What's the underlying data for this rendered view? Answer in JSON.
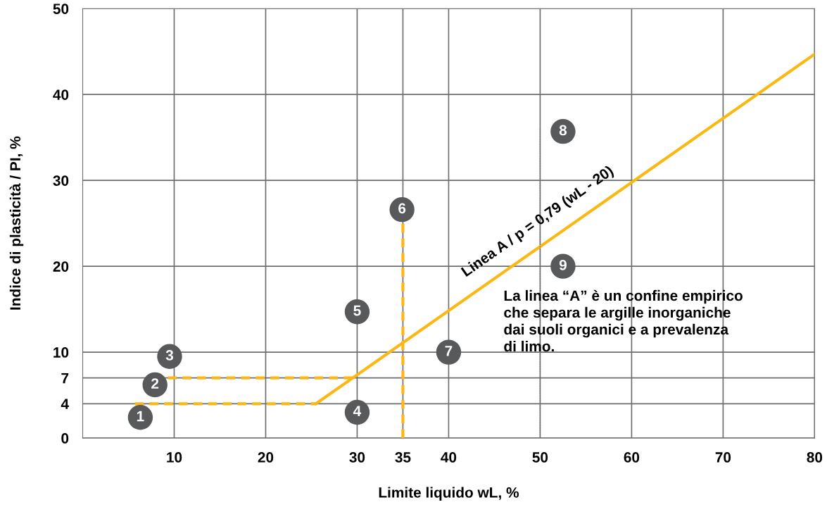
{
  "chart_data": {
    "type": "line",
    "xlabel": "Limite liquido wL, %",
    "ylabel": "Indice di plasticità / PI, %",
    "xlim": [
      0,
      80
    ],
    "ylim": [
      0,
      50
    ],
    "xticks": [
      10,
      20,
      30,
      35,
      40,
      50,
      60,
      70,
      80
    ],
    "yticks": [
      0,
      4,
      7,
      10,
      20,
      30,
      40,
      50
    ],
    "grid": true,
    "series": [
      {
        "x": [
          25.5,
          80
        ],
        "values": [
          4,
          44.7
        ],
        "color": "#fbb714",
        "line_style": "solid",
        "marker": "none"
      },
      {
        "x": [
          5.7,
          25.5
        ],
        "values": [
          4,
          4
        ],
        "color": "#fbb714",
        "line_style": "dashed",
        "marker": "none"
      },
      {
        "x": [
          9.3,
          30
        ],
        "values": [
          7,
          7
        ],
        "color": "#fbb714",
        "line_style": "dashed",
        "marker": "none"
      },
      {
        "x": [
          35,
          35
        ],
        "values": [
          0,
          25
        ],
        "color": "#fbb714",
        "line_style": "dashed",
        "marker": "none"
      },
      {
        "x": [
          50,
          50
        ],
        "values": [
          0,
          36
        ],
        "color": "#6d6e71",
        "line_style": "dotted",
        "marker": "none"
      },
      {
        "type": "scatter",
        "x": [
          6.3,
          7.9,
          9.5,
          30,
          30,
          34.9,
          40,
          52.5,
          52.5
        ],
        "values": [
          2.4,
          6.2,
          9.5,
          3.0,
          14.7,
          26.6,
          10,
          35.7,
          20
        ],
        "color": "#58595b",
        "marker": "circle"
      }
    ],
    "annotations": [
      {
        "text": "1",
        "x": 6.3,
        "y": 2.4
      },
      {
        "text": "2",
        "x": 7.9,
        "y": 6.2
      },
      {
        "text": "3",
        "x": 9.5,
        "y": 9.5
      },
      {
        "text": "4",
        "x": 30,
        "y": 3.0
      },
      {
        "text": "5",
        "x": 30,
        "y": 14.7
      },
      {
        "text": "6",
        "x": 34.9,
        "y": 26.6
      },
      {
        "text": "7",
        "x": 40,
        "y": 10
      },
      {
        "text": "8",
        "x": 52.5,
        "y": 35.7
      },
      {
        "text": "9",
        "x": 52.5,
        "y": 20
      },
      "Linea A / p = 0,79 (wL - 20)",
      "La linea “A” è un confine empirico\nche separa le argille inorganiche\ndai suoli organici e a prevalenza\ndi limo."
    ]
  }
}
